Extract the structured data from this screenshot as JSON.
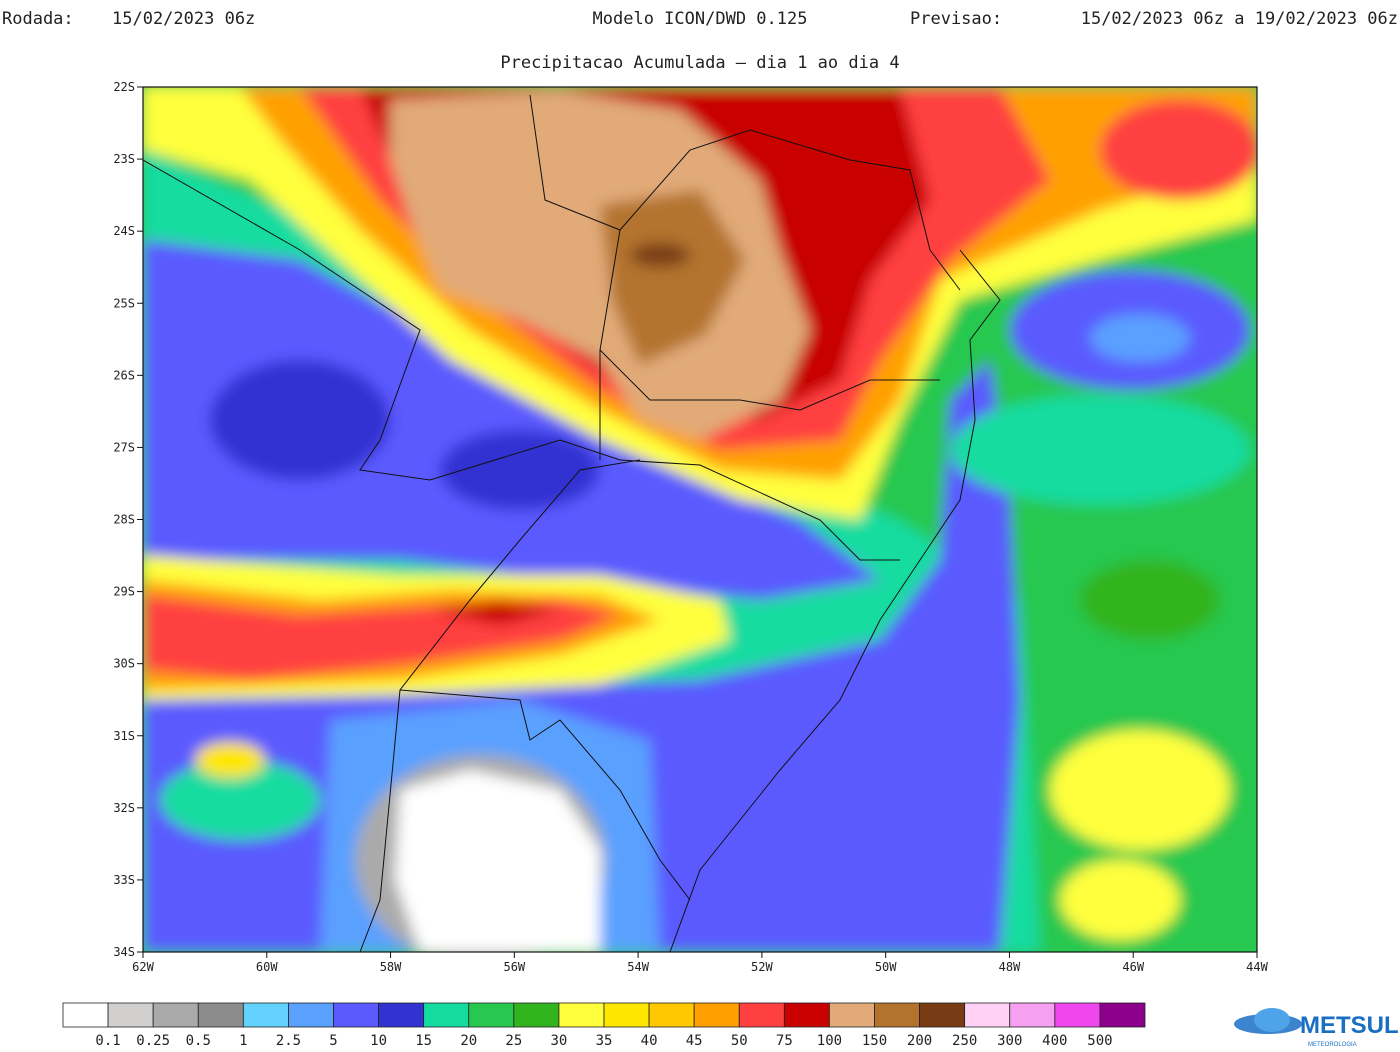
{
  "header": {
    "run_label": "Rodada:",
    "run_value": "15/02/2023 06z",
    "model": "Modelo ICON/DWD 0.125",
    "forecast_label": "Previsao:",
    "forecast_value": "15/02/2023 06z a 19/02/2023 06z",
    "subtitle": "Precipitacao Acumulada — dia 1 ao dia 4"
  },
  "map": {
    "lat_labels": [
      "22S",
      "23S",
      "24S",
      "25S",
      "26S",
      "27S",
      "28S",
      "29S",
      "30S",
      "31S",
      "32S",
      "33S",
      "34S"
    ],
    "lon_labels": [
      "62W",
      "60W",
      "58W",
      "56W",
      "54W",
      "52W",
      "50W",
      "48W",
      "46W",
      "44W"
    ]
  },
  "colorbar": {
    "colors": [
      "#ffffff",
      "#d2cfcf",
      "#aaaaaa",
      "#8c8c8c",
      "#64d2ff",
      "#5aa0ff",
      "#5a5aff",
      "#3232d2",
      "#14dca0",
      "#28c850",
      "#32b41e",
      "#ffff3c",
      "#ffe600",
      "#ffc800",
      "#ffa000",
      "#ff4040",
      "#c80000",
      "#e1aa78",
      "#b4732d",
      "#783c14",
      "#ffd2f5",
      "#f5a0f0",
      "#f046f0",
      "#8c008c"
    ],
    "labels": [
      "0.1",
      "0.25",
      "0.5",
      "1",
      "2.5",
      "5",
      "10",
      "15",
      "20",
      "25",
      "30",
      "35",
      "40",
      "45",
      "50",
      "75",
      "100",
      "150",
      "200",
      "250",
      "300",
      "400",
      "500"
    ]
  },
  "logo": {
    "name": "METSUL",
    "tagline": "METEOROLOGIA"
  }
}
